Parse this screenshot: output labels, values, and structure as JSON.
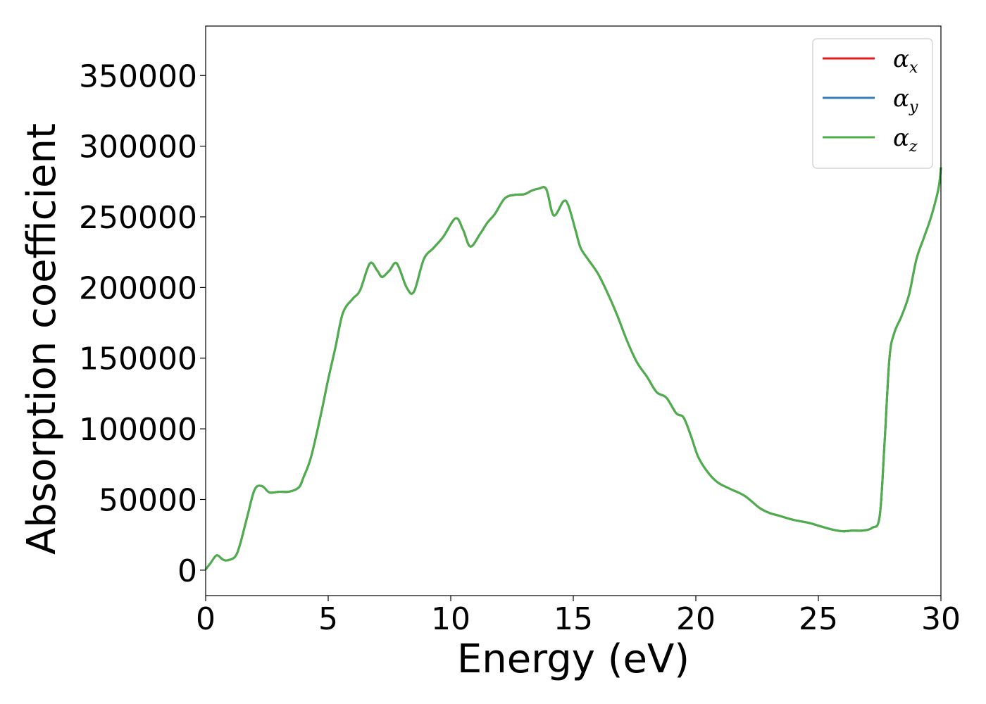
{
  "chart_data": {
    "type": "line",
    "title": "",
    "xlabel": "Energy (eV)",
    "ylabel": "Absorption coefficient",
    "xlim": [
      0,
      30
    ],
    "ylim": [
      -18000,
      385000
    ],
    "xticks": [
      0,
      5,
      10,
      15,
      20,
      25,
      30
    ],
    "yticks": [
      0,
      50000,
      100000,
      150000,
      200000,
      250000,
      300000,
      350000
    ],
    "grid": false,
    "legend_position": "top-right",
    "series": [
      {
        "name": "α_x",
        "legend": {
          "symbol": "α",
          "subscript": "x"
        },
        "color": "#e41a1c",
        "x": [
          0,
          0.2,
          0.45,
          0.7,
          0.9,
          1.2,
          1.4,
          1.7,
          2.0,
          2.3,
          2.6,
          3.0,
          3.4,
          3.8,
          4.0,
          4.3,
          4.7,
          5.0,
          5.3,
          5.6,
          6.0,
          6.3,
          6.7,
          7.0,
          7.2,
          7.5,
          7.8,
          8.2,
          8.5,
          8.9,
          9.3,
          9.7,
          10.2,
          10.5,
          10.8,
          11.2,
          11.5,
          11.8,
          12.2,
          12.6,
          13.0,
          13.3,
          13.6,
          13.9,
          14.2,
          14.6,
          14.8,
          15.1,
          15.3,
          15.6,
          16.0,
          16.4,
          16.8,
          17.2,
          17.6,
          18.0,
          18.4,
          18.8,
          19.2,
          19.5,
          19.8,
          20.1,
          20.5,
          20.9,
          21.4,
          22.0,
          22.6,
          23.0,
          23.4,
          24.0,
          24.6,
          25.0,
          25.5,
          26.0,
          26.4,
          26.8,
          27.2,
          27.5,
          27.7,
          27.9,
          28.1,
          28.4,
          28.7,
          29.0,
          29.3,
          29.6,
          29.9,
          30.0
        ],
        "values": [
          500,
          5000,
          10500,
          7500,
          7000,
          9500,
          18000,
          38000,
          57000,
          59500,
          55000,
          55500,
          55500,
          58500,
          66000,
          80000,
          110000,
          135000,
          158000,
          182000,
          192000,
          198000,
          217000,
          212000,
          207500,
          212000,
          217000,
          200000,
          197000,
          220000,
          228000,
          236000,
          249000,
          241000,
          229000,
          238000,
          246000,
          252000,
          263000,
          265500,
          266000,
          268500,
          270000,
          269500,
          251000,
          261000,
          258000,
          240000,
          228000,
          220000,
          210000,
          196000,
          180000,
          162000,
          147000,
          137000,
          126000,
          122000,
          111000,
          108000,
          95000,
          80000,
          69000,
          62000,
          57500,
          52500,
          44000,
          40500,
          38500,
          35500,
          33500,
          31500,
          29000,
          27500,
          28000,
          28000,
          30000,
          38000,
          90000,
          150000,
          168000,
          180000,
          195000,
          220000,
          235000,
          250000,
          270000,
          285000
        ]
      },
      {
        "name": "α_y",
        "legend": {
          "symbol": "α",
          "subscript": "y"
        },
        "color": "#377eb8",
        "x": [
          0,
          0.2,
          0.45,
          0.7,
          0.9,
          1.2,
          1.4,
          1.7,
          2.0,
          2.3,
          2.6,
          3.0,
          3.4,
          3.8,
          4.0,
          4.3,
          4.7,
          5.0,
          5.3,
          5.6,
          6.0,
          6.3,
          6.7,
          7.0,
          7.2,
          7.5,
          7.8,
          8.2,
          8.5,
          8.9,
          9.3,
          9.7,
          10.2,
          10.5,
          10.8,
          11.2,
          11.5,
          11.8,
          12.2,
          12.6,
          13.0,
          13.3,
          13.6,
          13.9,
          14.2,
          14.6,
          14.8,
          15.1,
          15.3,
          15.6,
          16.0,
          16.4,
          16.8,
          17.2,
          17.6,
          18.0,
          18.4,
          18.8,
          19.2,
          19.5,
          19.8,
          20.1,
          20.5,
          20.9,
          21.4,
          22.0,
          22.6,
          23.0,
          23.4,
          24.0,
          24.6,
          25.0,
          25.5,
          26.0,
          26.4,
          26.8,
          27.2,
          27.5,
          27.7,
          27.9,
          28.1,
          28.4,
          28.7,
          29.0,
          29.3,
          29.6,
          29.9,
          30.0
        ],
        "values": [
          500,
          5000,
          10500,
          7500,
          7000,
          9500,
          18000,
          38000,
          57000,
          59500,
          55000,
          55500,
          55500,
          58500,
          66000,
          80000,
          110000,
          135000,
          158000,
          182000,
          192000,
          198000,
          217000,
          212000,
          207500,
          212000,
          217000,
          200000,
          197000,
          220000,
          228000,
          236000,
          249000,
          241000,
          229000,
          238000,
          246000,
          252000,
          263000,
          265500,
          266000,
          268500,
          270000,
          269500,
          251000,
          261000,
          258000,
          240000,
          228000,
          220000,
          210000,
          196000,
          180000,
          162000,
          147000,
          137000,
          126000,
          122000,
          111000,
          108000,
          95000,
          80000,
          69000,
          62000,
          57500,
          52500,
          44000,
          40500,
          38500,
          35500,
          33500,
          31500,
          29000,
          27500,
          28000,
          28000,
          30000,
          38000,
          90000,
          150000,
          168000,
          180000,
          195000,
          220000,
          235000,
          250000,
          270000,
          285000
        ]
      },
      {
        "name": "α_z",
        "legend": {
          "symbol": "α",
          "subscript": "z"
        },
        "color": "#4daf4a",
        "x": [
          0,
          0.2,
          0.45,
          0.7,
          0.9,
          1.2,
          1.4,
          1.7,
          2.0,
          2.3,
          2.6,
          3.0,
          3.4,
          3.8,
          4.0,
          4.3,
          4.7,
          5.0,
          5.3,
          5.6,
          6.0,
          6.3,
          6.7,
          7.0,
          7.2,
          7.5,
          7.8,
          8.2,
          8.5,
          8.9,
          9.3,
          9.7,
          10.2,
          10.5,
          10.8,
          11.2,
          11.5,
          11.8,
          12.2,
          12.6,
          13.0,
          13.3,
          13.6,
          13.9,
          14.2,
          14.6,
          14.8,
          15.1,
          15.3,
          15.6,
          16.0,
          16.4,
          16.8,
          17.2,
          17.6,
          18.0,
          18.4,
          18.8,
          19.2,
          19.5,
          19.8,
          20.1,
          20.5,
          20.9,
          21.4,
          22.0,
          22.6,
          23.0,
          23.4,
          24.0,
          24.6,
          25.0,
          25.5,
          26.0,
          26.4,
          26.8,
          27.2,
          27.5,
          27.7,
          27.9,
          28.1,
          28.4,
          28.7,
          29.0,
          29.3,
          29.6,
          29.9,
          30.0
        ],
        "values": [
          500,
          5000,
          10500,
          7500,
          7000,
          9500,
          18000,
          38000,
          57000,
          59500,
          55000,
          55500,
          55500,
          58500,
          66000,
          80000,
          110000,
          135000,
          158000,
          182000,
          192000,
          198000,
          217000,
          212000,
          207500,
          212000,
          217000,
          200000,
          197000,
          220000,
          228000,
          236000,
          249000,
          241000,
          229000,
          238000,
          246000,
          252000,
          263000,
          265500,
          266000,
          268500,
          270000,
          269500,
          251000,
          261000,
          258000,
          240000,
          228000,
          220000,
          210000,
          196000,
          180000,
          162000,
          147000,
          137000,
          126000,
          122000,
          111000,
          108000,
          95000,
          80000,
          69000,
          62000,
          57500,
          52500,
          44000,
          40500,
          38500,
          35500,
          33500,
          31500,
          29000,
          27500,
          28000,
          28000,
          30000,
          38000,
          90000,
          150000,
          168000,
          180000,
          195000,
          220000,
          235000,
          250000,
          270000,
          285000
        ]
      }
    ]
  }
}
